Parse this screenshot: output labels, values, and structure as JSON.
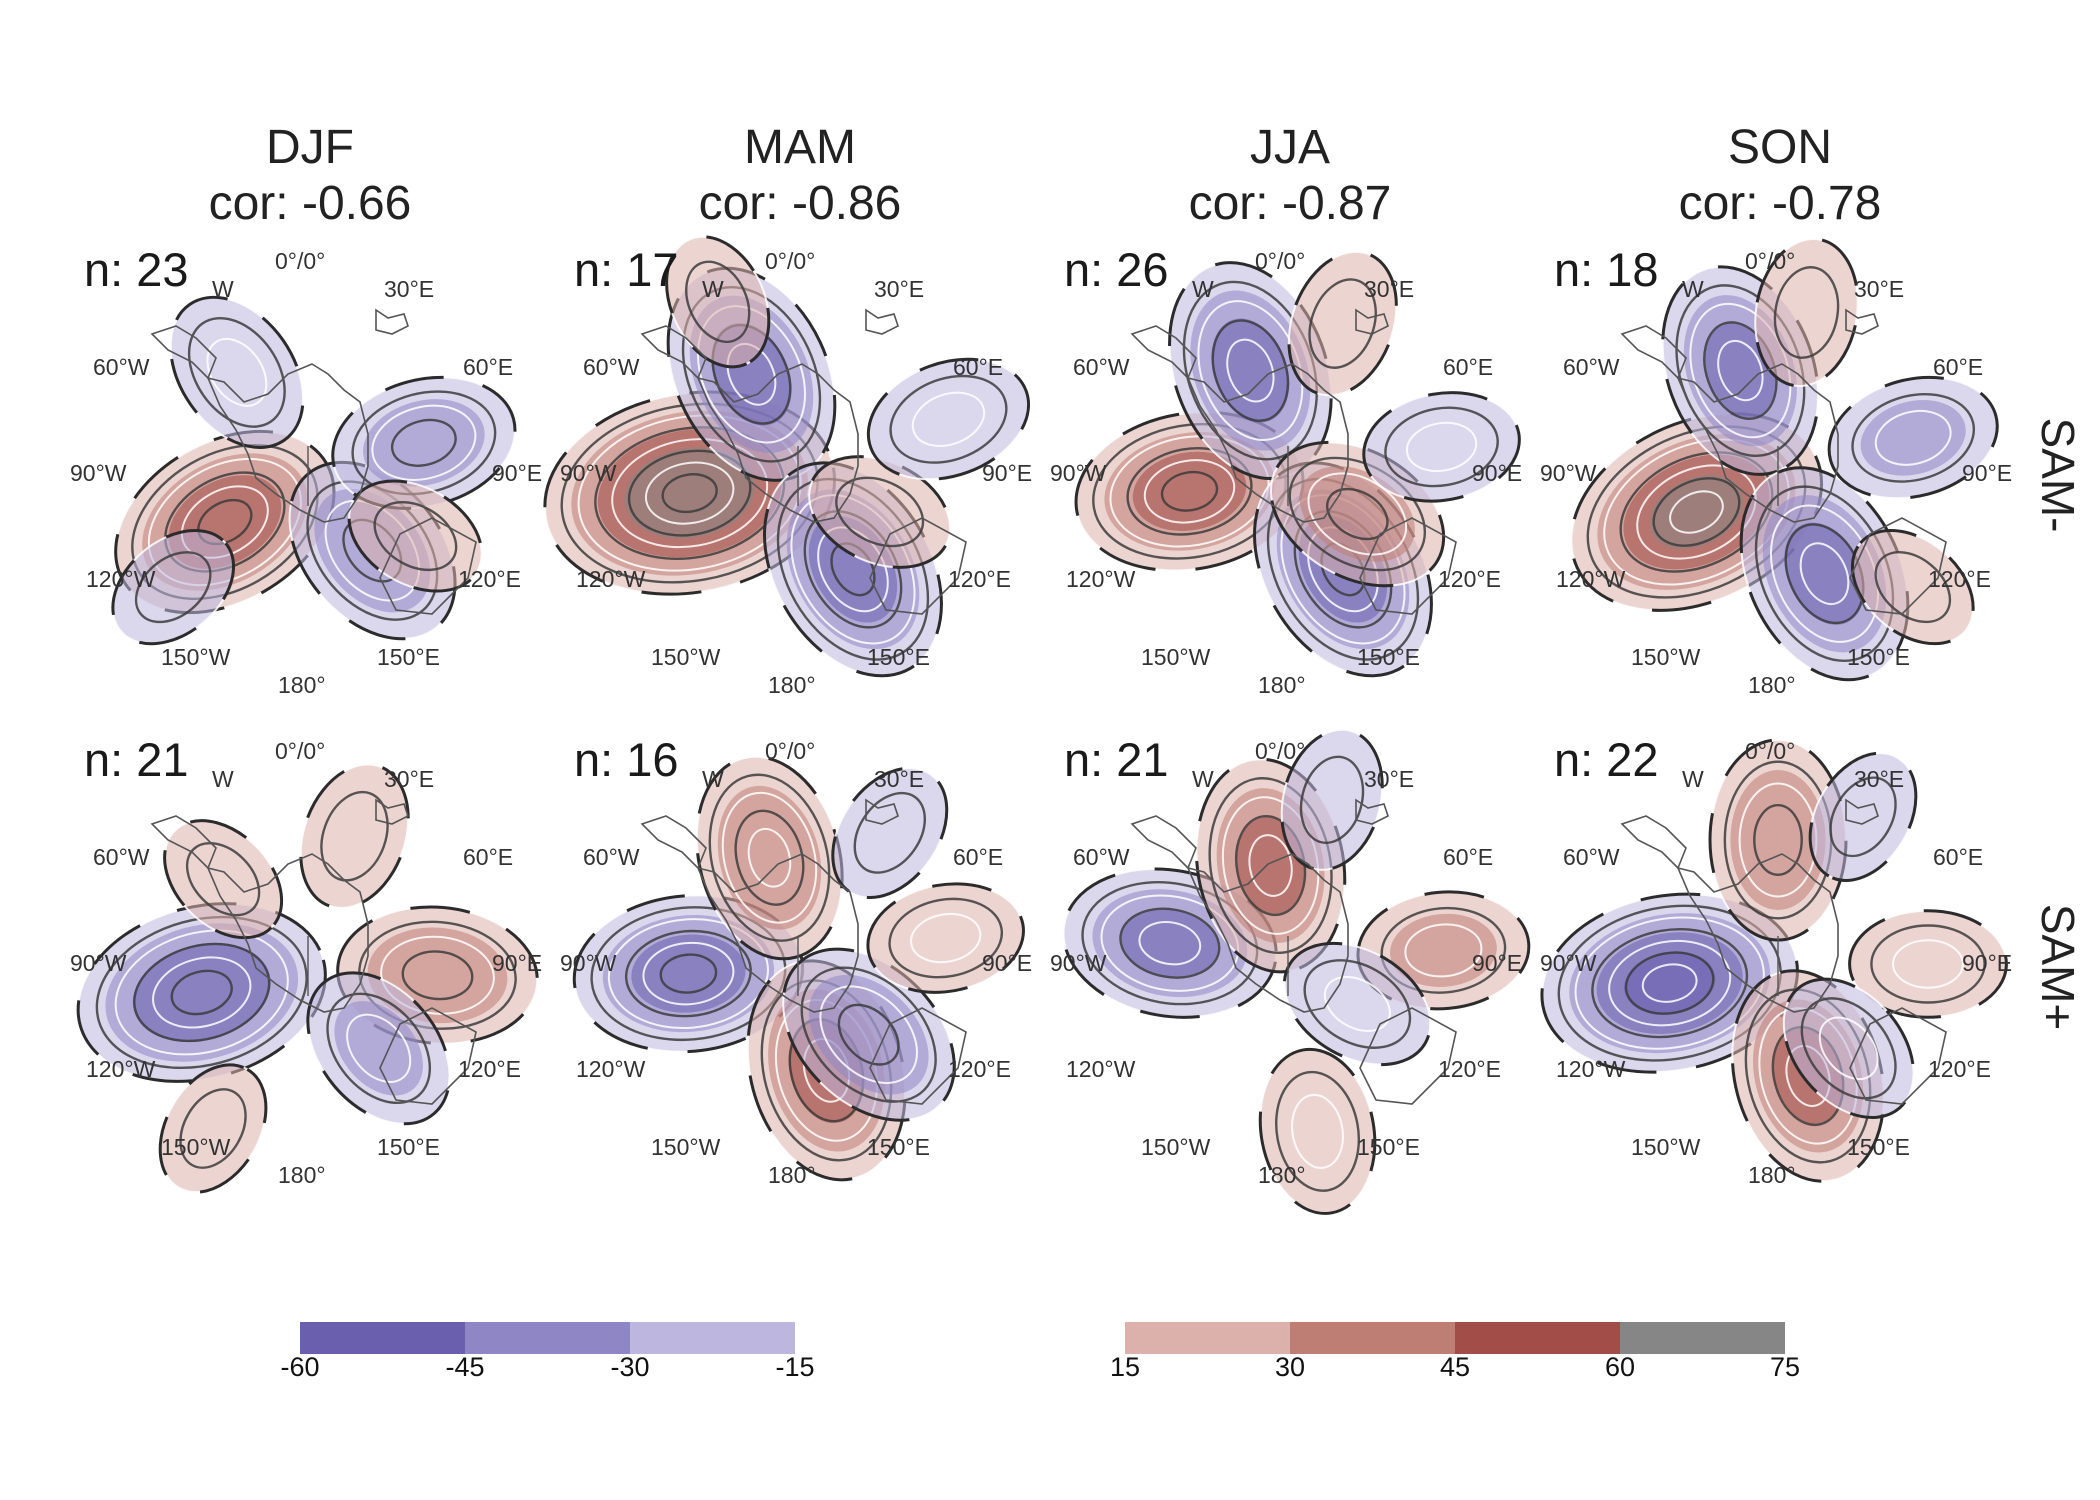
{
  "chart_data": {
    "type": "heatmap",
    "description_kind": "polar stereographic composite maps",
    "columns": [
      {
        "season": "DJF",
        "cor": "cor: -0.66"
      },
      {
        "season": "MAM",
        "cor": "cor: -0.86"
      },
      {
        "season": "JJA",
        "cor": "cor: -0.87"
      },
      {
        "season": "SON",
        "cor": "cor: -0.78"
      }
    ],
    "rows": [
      {
        "label": "SAM-",
        "n": [
          "n: 23",
          "n: 17",
          "n: 26",
          "n: 18"
        ]
      },
      {
        "label": "SAM+",
        "n": [
          "n: 21",
          "n: 16",
          "n: 21",
          "n: 22"
        ]
      }
    ],
    "lon_labels": {
      "top": "0°/0°",
      "w": "W",
      "e30": "30°E",
      "w60": "60°W",
      "e60": "60°E",
      "w90": "90°W",
      "e90": "90°E",
      "w120": "120°W",
      "e120": "120°E",
      "w150": "150°W",
      "e150": "150°E",
      "bottom": "180°"
    },
    "colorbar_negative": {
      "ticks": [
        "-60",
        "-45",
        "-30",
        "-15"
      ],
      "range": [
        -60,
        -15
      ],
      "bins": [
        {
          "from": -60,
          "to": -45,
          "color": "#6a5fae"
        },
        {
          "from": -45,
          "to": -30,
          "color": "#8f86c6"
        },
        {
          "from": -30,
          "to": -15,
          "color": "#bdb7df"
        }
      ]
    },
    "colorbar_positive": {
      "ticks": [
        "15",
        "30",
        "45",
        "60",
        "75"
      ],
      "range": [
        15,
        75
      ],
      "bins": [
        {
          "from": 15,
          "to": 30,
          "color": "#dcb1ac"
        },
        {
          "from": 30,
          "to": 45,
          "color": "#bf7e74"
        },
        {
          "from": 45,
          "to": 60,
          "color": "#a24d47"
        },
        {
          "from": 60,
          "to": 75,
          "color": "#868686"
        }
      ]
    },
    "anomaly_centers": [
      [
        [
          {
            "lon": -120,
            "r": 0.48,
            "v": 52
          },
          {
            "lon": 140,
            "r": 0.5,
            "v": -40
          },
          {
            "lon": 75,
            "r": 0.6,
            "v": -35
          },
          {
            "lon": -35,
            "r": 0.62,
            "v": -28
          },
          {
            "lon": 120,
            "r": 0.62,
            "v": 20
          },
          {
            "lon": -130,
            "r": 0.88,
            "v": -18
          }
        ],
        [
          {
            "lon": -100,
            "r": 0.55,
            "v": 72
          },
          {
            "lon": -25,
            "r": 0.55,
            "v": -48
          },
          {
            "lon": 150,
            "r": 0.55,
            "v": -50
          },
          {
            "lon": 115,
            "r": 0.45,
            "v": 22
          },
          {
            "lon": 70,
            "r": 0.8,
            "v": -28
          },
          {
            "lon": -25,
            "r": 0.95,
            "v": 18
          }
        ],
        [
          {
            "lon": -100,
            "r": 0.5,
            "v": 50
          },
          {
            "lon": -20,
            "r": 0.55,
            "v": -48
          },
          {
            "lon": 150,
            "r": 0.55,
            "v": -50
          },
          {
            "lon": 120,
            "r": 0.4,
            "v": 35
          },
          {
            "lon": 20,
            "r": 0.8,
            "v": 22
          },
          {
            "lon": 80,
            "r": 0.78,
            "v": -25
          }
        ],
        [
          {
            "lon": -115,
            "r": 0.45,
            "v": 62
          },
          {
            "lon": -20,
            "r": 0.55,
            "v": -45
          },
          {
            "lon": 155,
            "r": 0.55,
            "v": -48
          },
          {
            "lon": 75,
            "r": 0.7,
            "v": -30
          },
          {
            "lon": 10,
            "r": 0.82,
            "v": 22
          },
          {
            "lon": 130,
            "r": 0.88,
            "v": 18
          }
        ]
      ],
      [
        [
          {
            "lon": -105,
            "r": 0.55,
            "v": -58
          },
          {
            "lon": 95,
            "r": 0.65,
            "v": 40
          },
          {
            "lon": 20,
            "r": 0.68,
            "v": 22
          },
          {
            "lon": -45,
            "r": 0.6,
            "v": 18
          },
          {
            "lon": 140,
            "r": 0.55,
            "v": -30
          },
          {
            "lon": -150,
            "r": 0.95,
            "v": 18
          }
        ],
        [
          {
            "lon": -95,
            "r": 0.55,
            "v": -50
          },
          {
            "lon": -15,
            "r": 0.55,
            "v": 42
          },
          {
            "lon": 165,
            "r": 0.55,
            "v": 48
          },
          {
            "lon": 135,
            "r": 0.5,
            "v": -40
          },
          {
            "lon": 80,
            "r": 0.75,
            "v": 25
          },
          {
            "lon": 35,
            "r": 0.8,
            "v": -20
          }
        ],
        [
          {
            "lon": -80,
            "r": 0.6,
            "v": -45
          },
          {
            "lon": -10,
            "r": 0.5,
            "v": 45
          },
          {
            "lon": 170,
            "r": 0.85,
            "v": 28
          },
          {
            "lon": 85,
            "r": 0.78,
            "v": 30
          },
          {
            "lon": 120,
            "r": 0.4,
            "v": -25
          },
          {
            "lon": 15,
            "r": 0.85,
            "v": -20
          }
        ],
        [
          {
            "lon": -100,
            "r": 0.55,
            "v": -60
          },
          {
            "lon": 0,
            "r": 0.62,
            "v": 40
          },
          {
            "lon": 165,
            "r": 0.58,
            "v": 45
          },
          {
            "lon": 90,
            "r": 0.75,
            "v": 25
          },
          {
            "lon": 140,
            "r": 0.55,
            "v": -25
          },
          {
            "lon": 30,
            "r": 0.85,
            "v": -18
          }
        ]
      ]
    ]
  }
}
